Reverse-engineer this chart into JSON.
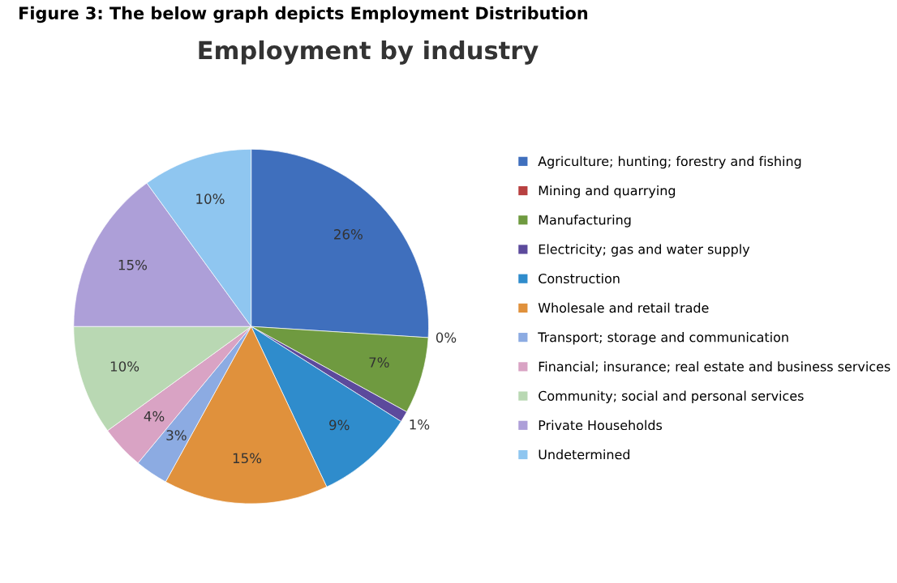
{
  "chart_data": {
    "type": "pie",
    "title": "Employment by industry",
    "annotations": [
      "Figure 3: The below graph depicts Employment Distribution"
    ],
    "categories": [
      "Agriculture; hunting; forestry and fishing",
      "Mining and quarrying",
      "Manufacturing",
      "Electricity; gas and water supply",
      "Construction",
      "Wholesale and retail trade",
      "Transport; storage and communication",
      "Financial; insurance; real estate and business services",
      "Community; social and personal services",
      "Private Households",
      "Undetermined"
    ],
    "values": [
      26,
      0,
      7,
      1,
      9,
      15,
      3,
      4,
      10,
      15,
      10
    ],
    "value_labels": [
      "26%",
      "0%",
      "7%",
      "1%",
      "9%",
      "15%",
      "3%",
      "4%",
      "10%",
      "15%",
      "10%"
    ],
    "colors": [
      "#3f6fbd",
      "#b84040",
      "#6f9a40",
      "#5c4a9c",
      "#2f8ccc",
      "#e0913c",
      "#8cabe2",
      "#d9a3c4",
      "#b9d8b3",
      "#ad9fd8",
      "#8fc6f0"
    ],
    "legend": "right"
  }
}
